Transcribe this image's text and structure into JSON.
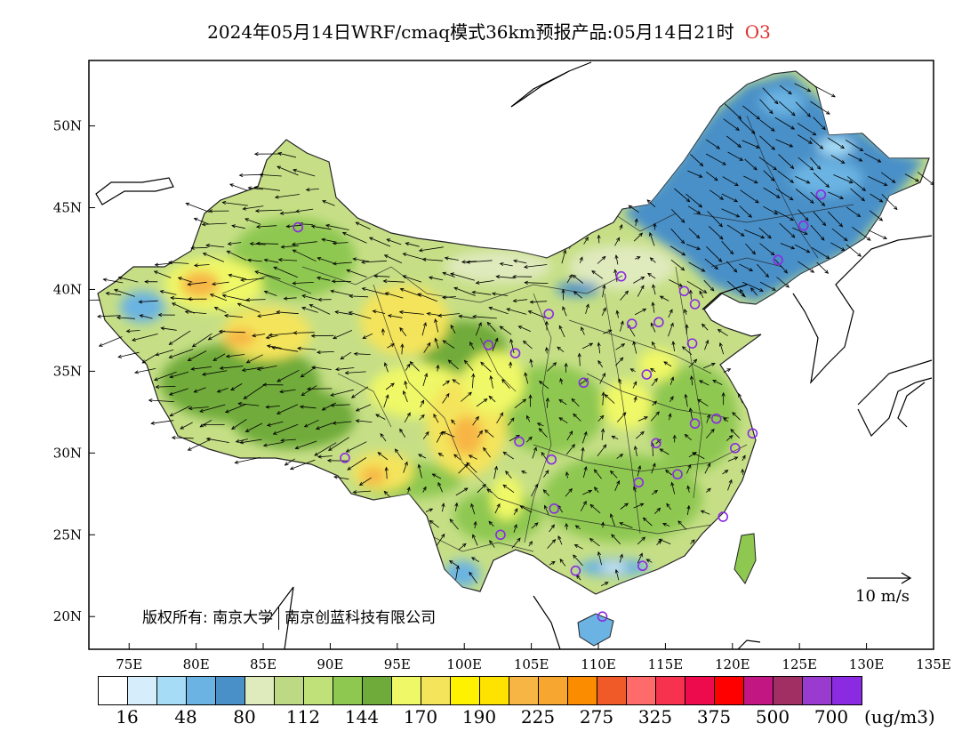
{
  "title": {
    "text": "2024年05月14日WRF/cmaq模式36km预报产品:05月14日21时",
    "species": "O3",
    "species_color": "#e0302c"
  },
  "axes": {
    "lon_labels": [
      "75E",
      "80E",
      "85E",
      "90E",
      "95E",
      "100E",
      "105E",
      "110E",
      "115E",
      "120E",
      "125E",
      "130E",
      "135E"
    ],
    "lat_labels": [
      "20N",
      "25N",
      "30N",
      "35N",
      "40N",
      "45N",
      "50N"
    ]
  },
  "copyright": {
    "prefix": "版权所有:",
    "org1": "南京大学",
    "org2": "南京创蓝科技有限公司"
  },
  "wind_reference": {
    "label": "10 m/s"
  },
  "colorbar": {
    "colors": [
      "#ffffff",
      "#d6eefb",
      "#a6dcf6",
      "#6bb3e2",
      "#4a90c8",
      "#dfeabd",
      "#bdd984",
      "#c0e07a",
      "#8ec851",
      "#6fab3b",
      "#eff866",
      "#f4e45c",
      "#fff200",
      "#ffe300",
      "#f7b544",
      "#f7a630",
      "#fb8c00",
      "#f05a28",
      "#ff6b6b",
      "#f7324f",
      "#ee0b4d",
      "#ff0000",
      "#c21682",
      "#a22f64",
      "#9a3bcf",
      "#8a2be2"
    ],
    "labels": [
      "16",
      "48",
      "80",
      "112",
      "144",
      "170",
      "190",
      "225",
      "275",
      "325",
      "375",
      "500",
      "700"
    ],
    "unit": "(ug/m3)"
  },
  "stations": [
    {
      "lon": 87.6,
      "lat": 43.8
    },
    {
      "lon": 91.1,
      "lat": 29.7
    },
    {
      "lon": 101.8,
      "lat": 36.6
    },
    {
      "lon": 103.8,
      "lat": 36.1
    },
    {
      "lon": 106.3,
      "lat": 38.5
    },
    {
      "lon": 111.7,
      "lat": 40.8
    },
    {
      "lon": 112.5,
      "lat": 37.9
    },
    {
      "lon": 114.5,
      "lat": 38.0
    },
    {
      "lon": 116.4,
      "lat": 39.9
    },
    {
      "lon": 117.2,
      "lat": 39.1
    },
    {
      "lon": 123.4,
      "lat": 41.8
    },
    {
      "lon": 125.3,
      "lat": 43.9
    },
    {
      "lon": 126.6,
      "lat": 45.8
    },
    {
      "lon": 117.0,
      "lat": 36.7
    },
    {
      "lon": 113.6,
      "lat": 34.8
    },
    {
      "lon": 108.9,
      "lat": 34.3
    },
    {
      "lon": 104.1,
      "lat": 30.7
    },
    {
      "lon": 106.5,
      "lat": 29.6
    },
    {
      "lon": 114.3,
      "lat": 30.6
    },
    {
      "lon": 117.2,
      "lat": 31.8
    },
    {
      "lon": 118.8,
      "lat": 32.1
    },
    {
      "lon": 120.2,
      "lat": 30.3
    },
    {
      "lon": 121.5,
      "lat": 31.2
    },
    {
      "lon": 115.9,
      "lat": 28.7
    },
    {
      "lon": 113.0,
      "lat": 28.2
    },
    {
      "lon": 106.7,
      "lat": 26.6
    },
    {
      "lon": 102.7,
      "lat": 25.0
    },
    {
      "lon": 108.3,
      "lat": 22.8
    },
    {
      "lon": 113.3,
      "lat": 23.1
    },
    {
      "lon": 119.3,
      "lat": 26.1
    },
    {
      "lon": 110.3,
      "lat": 20.0
    }
  ],
  "station_color": "#8a2be2"
}
